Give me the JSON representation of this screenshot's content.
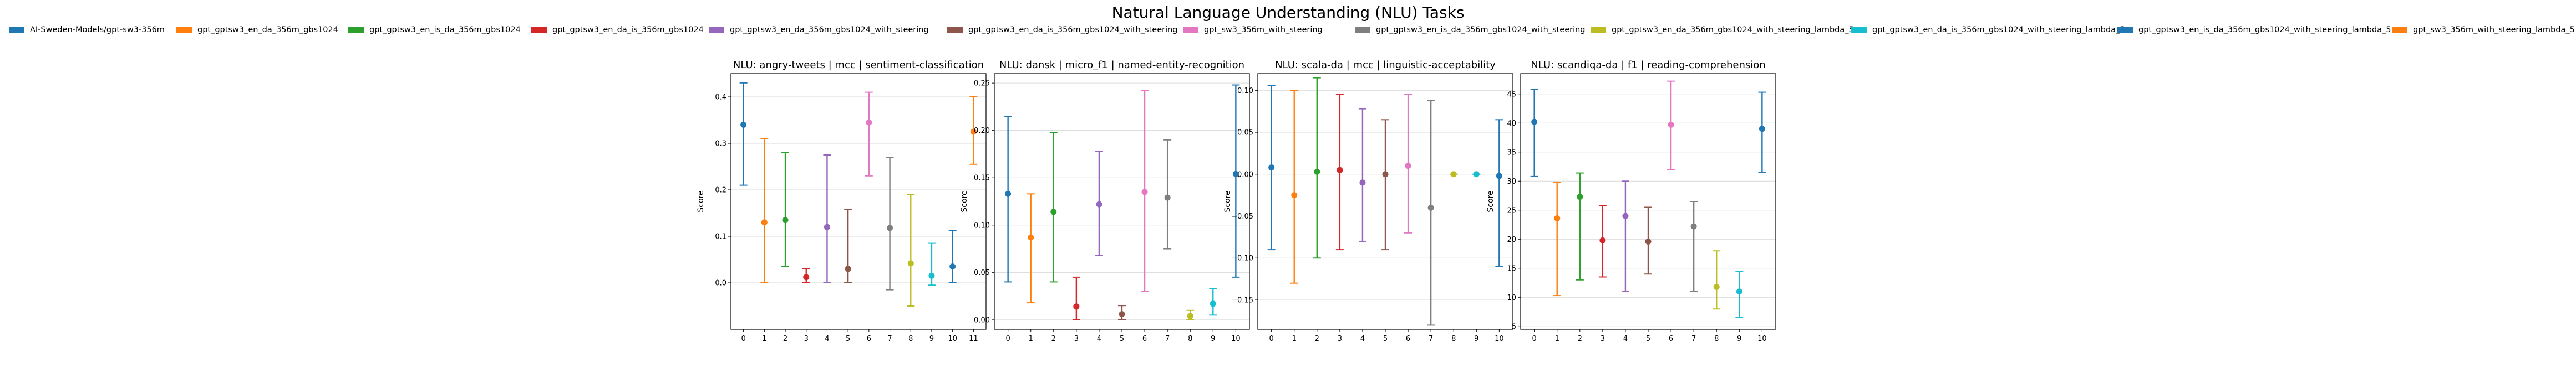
{
  "figure_title": "Natural Language Understanding (NLU) Tasks",
  "legend": [
    {
      "name": "AI-Sweden-Models/gpt-sw3-356m",
      "color": "#1f77b4"
    },
    {
      "name": "gpt_gptsw3_en_da_356m_gbs1024",
      "color": "#ff7f0e"
    },
    {
      "name": "gpt_gptsw3_en_is_da_356m_gbs1024",
      "color": "#2ca02c"
    },
    {
      "name": "gpt_gptsw3_en_da_is_356m_gbs1024",
      "color": "#d62728"
    },
    {
      "name": "gpt_gptsw3_en_da_356m_gbs1024_with_steering",
      "color": "#9467bd"
    },
    {
      "name": "gpt_gptsw3_en_da_is_356m_gbs1024_with_steering",
      "color": "#8c564b"
    },
    {
      "name": "gpt_sw3_356m_with_steering",
      "color": "#e377c2"
    },
    {
      "name": "gpt_gptsw3_en_is_da_356m_gbs1024_with_steering",
      "color": "#7f7f7f"
    },
    {
      "name": "gpt_gptsw3_en_da_356m_gbs1024_with_steering_lambda_5",
      "color": "#bcbd22"
    },
    {
      "name": "gpt_gptsw3_en_da_is_356m_gbs1024_with_steering_lambda_5",
      "color": "#17becf"
    },
    {
      "name": "gpt_gptsw3_en_is_da_356m_gbs1024_with_steering_lambda_5",
      "color": "#1f77b4"
    },
    {
      "name": "gpt_sw3_356m_with_steering_lambda_5",
      "color": "#ff7f0e"
    }
  ],
  "chart_data": [
    {
      "type": "scatter",
      "title": "NLU: angry-tweets | mcc | sentiment-classification",
      "ylabel": "Score",
      "xlabel": "",
      "ylim": [
        -0.1,
        0.45
      ],
      "yticks": [
        0.0,
        0.1,
        0.2,
        0.3,
        0.4
      ],
      "ytick_labels": [
        "0.0",
        "0.1",
        "0.2",
        "0.3",
        "0.4"
      ],
      "grid": "horizontal",
      "x": [
        0,
        1,
        2,
        3,
        4,
        5,
        6,
        7,
        8,
        9,
        10,
        11
      ],
      "values": [
        0.34,
        0.13,
        0.135,
        0.012,
        0.12,
        0.03,
        0.345,
        0.118,
        0.042,
        0.015,
        0.035,
        0.325
      ],
      "err_low": [
        0.21,
        0.0,
        0.035,
        0.0,
        0.0,
        0.0,
        0.23,
        -0.015,
        -0.05,
        -0.005,
        0.0,
        0.255
      ],
      "err_high": [
        0.43,
        0.31,
        0.28,
        0.03,
        0.275,
        0.158,
        0.41,
        0.27,
        0.19,
        0.085,
        0.112,
        0.4
      ]
    },
    {
      "type": "scatter",
      "title": "NLU: dansk | micro_f1 | named-entity-recognition",
      "ylabel": "Score",
      "xlabel": "",
      "ylim": [
        -0.01,
        0.26
      ],
      "yticks": [
        0.0,
        0.05,
        0.1,
        0.15,
        0.2,
        0.25
      ],
      "ytick_labels": [
        "0.00",
        "0.05",
        "0.10",
        "0.15",
        "0.20",
        "0.25"
      ],
      "grid": "horizontal",
      "x": [
        0,
        1,
        2,
        3,
        4,
        5,
        6,
        7,
        8,
        9,
        10
      ],
      "values": [
        0.133,
        0.087,
        0.114,
        0.014,
        0.122,
        0.006,
        0.135,
        0.129,
        0.004,
        0.017,
        0.154
      ],
      "err_low": [
        0.04,
        0.018,
        0.04,
        0.0,
        0.068,
        0.0,
        0.03,
        0.075,
        0.0,
        0.005,
        0.045
      ],
      "err_high": [
        0.215,
        0.133,
        0.198,
        0.045,
        0.178,
        0.015,
        0.242,
        0.19,
        0.01,
        0.033,
        0.248
      ]
    },
    {
      "type": "scatter",
      "title": "NLU: scala-da | mcc | linguistic-acceptability",
      "ylabel": "Score",
      "xlabel": "",
      "ylim": [
        -0.185,
        0.12
      ],
      "yticks": [
        -0.15,
        -0.1,
        -0.05,
        0.0,
        0.05,
        0.1
      ],
      "ytick_labels": [
        "−0.15",
        "−0.10",
        "−0.05",
        "0.00",
        "0.05",
        "0.10"
      ],
      "grid": "horizontal",
      "x": [
        0,
        1,
        2,
        3,
        4,
        5,
        6,
        7,
        8,
        9,
        10
      ],
      "values": [
        0.008,
        -0.025,
        0.003,
        0.005,
        -0.01,
        0.0,
        0.01,
        -0.04,
        0.0,
        0.0,
        -0.002
      ],
      "err_low": [
        -0.09,
        -0.13,
        -0.1,
        -0.09,
        -0.08,
        -0.09,
        -0.07,
        -0.18,
        0.0,
        0.0,
        -0.11
      ],
      "err_high": [
        0.106,
        0.1,
        0.115,
        0.095,
        0.078,
        0.065,
        0.095,
        0.088,
        0.0,
        0.0,
        0.065
      ]
    },
    {
      "type": "scatter",
      "title": "NLU: scandiqa-da | f1 | reading-comprehension",
      "ylabel": "Score",
      "xlabel": "",
      "ylim": [
        4.5,
        48.5
      ],
      "yticks": [
        5,
        10,
        15,
        20,
        25,
        30,
        35,
        40,
        45
      ],
      "ytick_labels": [
        "5",
        "10",
        "15",
        "20",
        "25",
        "30",
        "35",
        "40",
        "45"
      ],
      "grid": "horizontal",
      "x": [
        0,
        1,
        2,
        3,
        4,
        5,
        6,
        7,
        8,
        9,
        10
      ],
      "values": [
        40.2,
        23.6,
        27.3,
        19.8,
        24.0,
        19.6,
        39.7,
        22.2,
        11.8,
        11.0,
        39.0
      ],
      "err_low": [
        30.8,
        10.3,
        13.0,
        13.5,
        11.0,
        14.0,
        32.0,
        11.0,
        8.0,
        6.5,
        31.5
      ],
      "err_high": [
        45.8,
        29.8,
        31.4,
        25.8,
        30.0,
        25.5,
        47.2,
        26.5,
        18.0,
        14.5,
        45.3
      ]
    }
  ]
}
